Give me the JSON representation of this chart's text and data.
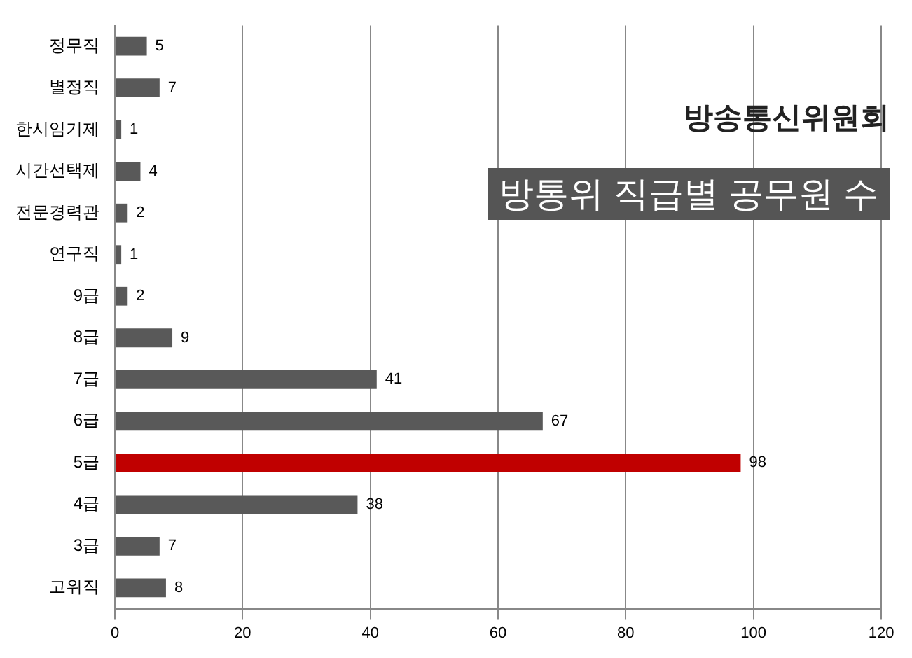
{
  "chart_data": {
    "type": "bar",
    "orientation": "horizontal",
    "title": "방통위 직급별 공무원 수",
    "annotations": [
      "방송통신위원회"
    ],
    "categories": [
      "정무직",
      "별정직",
      "한시임기제",
      "시간선택제",
      "전문경력관",
      "연구직",
      "9급",
      "8급",
      "7급",
      "6급",
      "5급",
      "4급",
      "3급",
      "고위직"
    ],
    "values": [
      5,
      7,
      1,
      4,
      2,
      1,
      2,
      9,
      41,
      67,
      98,
      38,
      7,
      8
    ],
    "colors": [
      "#595959",
      "#595959",
      "#595959",
      "#595959",
      "#595959",
      "#595959",
      "#595959",
      "#595959",
      "#595959",
      "#595959",
      "#c00000",
      "#595959",
      "#595959",
      "#595959"
    ],
    "xlim": [
      0,
      120
    ],
    "xticks": [
      0,
      20,
      40,
      60,
      80,
      100,
      120
    ],
    "grid": "x",
    "legend": false,
    "data_labels": true
  }
}
